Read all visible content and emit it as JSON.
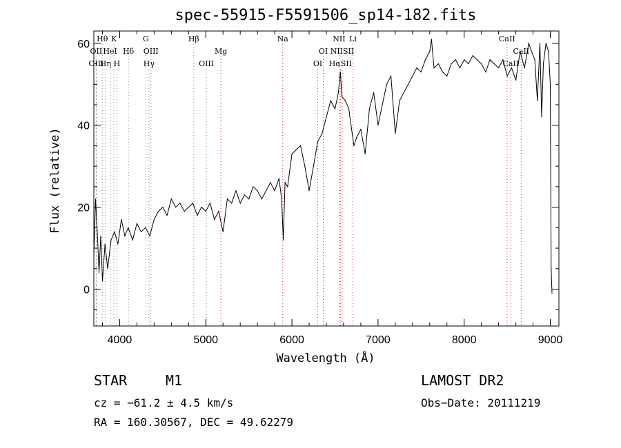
{
  "chart_data": {
    "type": "line",
    "title": "spec-55915-F5591506_sp14-182.fits",
    "xlabel": "Wavelength (Å)",
    "ylabel": "Flux (relative)",
    "xlim": [
      3700,
      9100
    ],
    "ylim": [
      -9,
      63
    ],
    "xticks": [
      4000,
      5000,
      6000,
      7000,
      8000,
      9000
    ],
    "yticks": [
      0,
      20,
      40,
      60
    ],
    "grid": false,
    "series": [
      {
        "name": "flux",
        "color": "#000000",
        "x": [
          3700,
          3720,
          3740,
          3760,
          3780,
          3800,
          3830,
          3860,
          3900,
          3940,
          3980,
          4020,
          4060,
          4100,
          4150,
          4200,
          4250,
          4300,
          4350,
          4400,
          4450,
          4500,
          4550,
          4600,
          4650,
          4700,
          4750,
          4800,
          4850,
          4900,
          4950,
          5000,
          5050,
          5100,
          5150,
          5200,
          5250,
          5300,
          5350,
          5400,
          5450,
          5500,
          5550,
          5600,
          5650,
          5700,
          5750,
          5800,
          5850,
          5880,
          5900,
          5920,
          5950,
          6000,
          6050,
          6100,
          6150,
          6200,
          6250,
          6300,
          6350,
          6400,
          6450,
          6500,
          6540,
          6563,
          6580,
          6620,
          6660,
          6700,
          6720,
          6750,
          6800,
          6850,
          6900,
          6950,
          7000,
          7050,
          7100,
          7150,
          7200,
          7250,
          7300,
          7350,
          7400,
          7450,
          7500,
          7550,
          7600,
          7620,
          7650,
          7700,
          7750,
          7800,
          7850,
          7900,
          7950,
          8000,
          8050,
          8100,
          8150,
          8200,
          8250,
          8300,
          8350,
          8400,
          8450,
          8500,
          8550,
          8600,
          8650,
          8700,
          8750,
          8800,
          8820,
          8850,
          8880,
          8900,
          8920,
          8950,
          8980,
          9000,
          9010,
          9020
        ],
        "y": [
          8,
          22,
          14,
          4,
          13,
          2,
          11,
          5,
          12,
          14,
          11,
          17,
          13,
          15,
          12,
          16,
          14,
          15,
          13,
          17,
          19,
          20,
          18,
          22,
          20,
          21,
          19,
          20,
          21,
          18,
          20,
          19,
          21,
          17,
          19,
          14,
          22,
          21,
          24,
          21,
          23,
          22,
          25,
          24,
          22,
          24,
          26,
          24,
          27,
          22,
          12,
          26,
          25,
          33,
          34,
          35,
          30,
          24,
          30,
          36,
          38,
          42,
          46,
          44,
          48,
          53,
          47,
          46,
          44,
          38,
          35,
          37,
          39,
          33,
          44,
          48,
          40,
          45,
          50,
          52,
          38,
          46,
          48,
          50,
          52,
          54,
          53,
          56,
          58,
          61,
          54,
          55,
          53,
          52,
          55,
          56,
          54,
          56,
          55,
          57,
          56,
          55,
          53,
          56,
          55,
          54,
          56,
          52,
          54,
          51,
          58,
          54,
          60,
          57,
          56,
          46,
          60,
          42,
          55,
          60,
          58,
          50,
          5,
          -1
        ]
      }
    ],
    "line_markers": [
      {
        "label": "Hθ",
        "x": 3798,
        "row": 0,
        "color": "#888888"
      },
      {
        "label": "K",
        "x": 3934,
        "row": 0,
        "color": "#888888"
      },
      {
        "label": "G",
        "x": 4304,
        "row": 0,
        "color": "#888888"
      },
      {
        "label": "Hβ",
        "x": 4861,
        "row": 0,
        "color": "#888888"
      },
      {
        "label": "Na",
        "x": 5893,
        "row": 0,
        "color": "#cc3333"
      },
      {
        "label": "NII",
        "x": 6548,
        "row": 0,
        "color": "#cc3333"
      },
      {
        "label": "Li",
        "x": 6708,
        "row": 0,
        "color": "#cc3333"
      },
      {
        "label": "CaII",
        "x": 8498,
        "row": 0,
        "color": "#cc3333"
      },
      {
        "label": "OII",
        "x": 3727,
        "row": 1,
        "color": "#888888"
      },
      {
        "label": "HeI",
        "x": 3889,
        "row": 1,
        "color": "#888888"
      },
      {
        "label": "Hδ",
        "x": 4102,
        "row": 1,
        "color": "#888888"
      },
      {
        "label": "OIII",
        "x": 4363,
        "row": 1,
        "color": "#888888"
      },
      {
        "label": "Mg",
        "x": 5175,
        "row": 1,
        "color": "#cc3333"
      },
      {
        "label": "OI",
        "x": 6364,
        "row": 1,
        "color": "#cc3333"
      },
      {
        "label": "NIISII",
        "x": 6584,
        "row": 1,
        "color": "#cc3333"
      },
      {
        "label": "CaII",
        "x": 8662,
        "row": 1,
        "color": "#cc3333"
      },
      {
        "label": "OIII",
        "x": 3727,
        "row": 2,
        "color": "#888888"
      },
      {
        "label": "Hη",
        "x": 3835,
        "row": 2,
        "color": "#888888"
      },
      {
        "label": "H",
        "x": 3968,
        "row": 2,
        "color": "#888888"
      },
      {
        "label": "Hγ",
        "x": 4340,
        "row": 2,
        "color": "#888888"
      },
      {
        "label": "OIII",
        "x": 5007,
        "row": 2,
        "color": "#888888"
      },
      {
        "label": "OI",
        "x": 6300,
        "row": 2,
        "color": "#cc3333"
      },
      {
        "label": "HαSII",
        "x": 6563,
        "row": 2,
        "color": "#cc3333"
      },
      {
        "label": "CaII",
        "x": 8542,
        "row": 2,
        "color": "#cc3333"
      }
    ]
  },
  "info": {
    "class_label": "STAR",
    "subclass_label": "M1",
    "cz_text": "cz = −61.2 ± 4.5 km/s",
    "coords_text": "RA = 160.30567, DEC =  49.62279",
    "survey_label": "LAMOST DR2",
    "obs_date_text": "Obs−Date: 20111219"
  }
}
